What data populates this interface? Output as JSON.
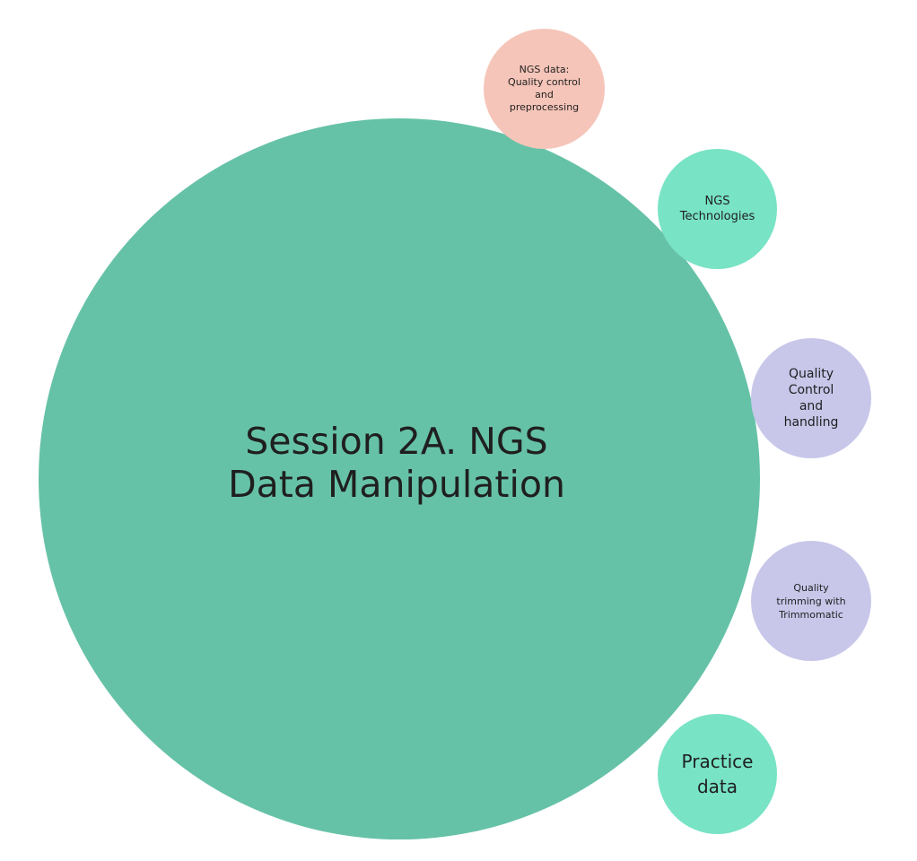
{
  "diagram": {
    "main": {
      "label": "Session 2A. NGS\nData Manipulation",
      "color": "#66c2a7"
    },
    "nodes": [
      {
        "label": "NGS data:\nQuality control\nand\npreprocessing",
        "color": "#f6c5b9"
      },
      {
        "label": "NGS\nTechnologies",
        "color": "#78e3c5"
      },
      {
        "label": "Quality\nControl\nand\nhandling",
        "color": "#c8c7ea"
      },
      {
        "label": "Quality\ntrimming with\nTrimmomatic",
        "color": "#c8c7ea"
      },
      {
        "label": "Practice\ndata",
        "color": "#78e3c5"
      }
    ]
  }
}
